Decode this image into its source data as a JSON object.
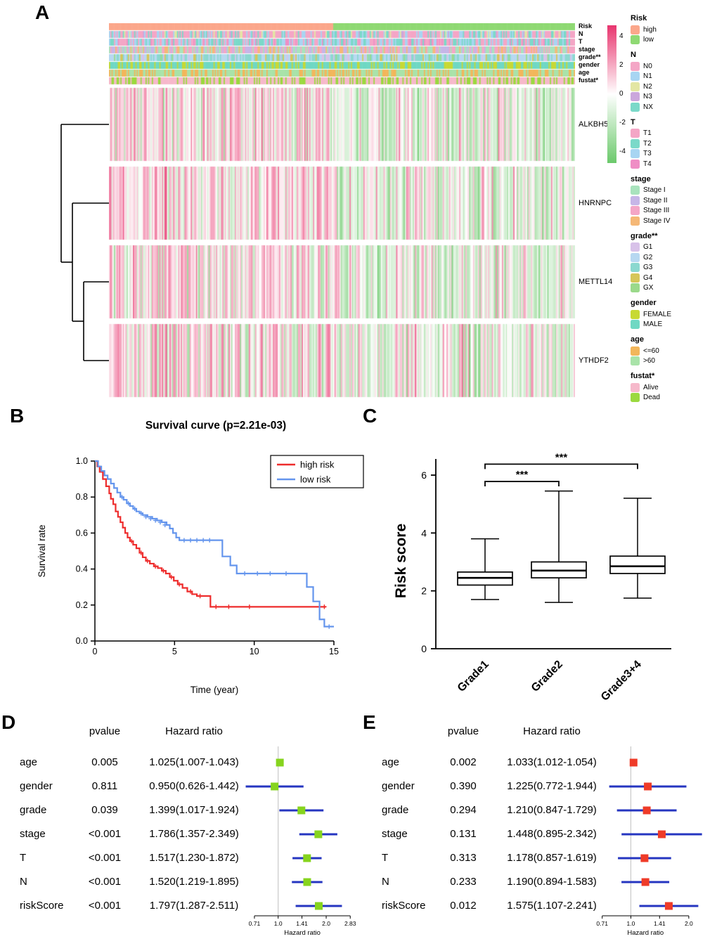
{
  "panels": {
    "A": "A",
    "B": "B",
    "C": "C",
    "D": "D",
    "E": "E"
  },
  "chart_data": [
    {
      "id": "expression-heatmap",
      "panel": "A",
      "type": "heatmap",
      "genes": [
        "ALKBH5",
        "HNRNPC",
        "METTL14",
        "YTHDF2"
      ],
      "n_samples": 370,
      "high_fraction": 0.48,
      "seed": 42,
      "gene_bias": [
        0.5,
        0.55,
        0.45,
        0.4
      ],
      "colormap": {
        "positive": "#E8356E",
        "zero": "#FFFFFF",
        "negative": "#6BC96B"
      },
      "colorbar": {
        "ticks": [
          4,
          2,
          0,
          -2,
          -4
        ],
        "vmax": 4.8,
        "vmin": -4.8
      },
      "tracks": [
        {
          "name": "Risk",
          "type": "group",
          "colors": {
            "high": "#FBA78B",
            "low": "#8FD973"
          }
        },
        {
          "name": "N",
          "type": "random",
          "categories": [
            "N0",
            "N1",
            "N2",
            "N3",
            "NX"
          ],
          "colors": [
            "#F4A6C6",
            "#A8D5F2",
            "#E3E6A4",
            "#CBA7DC",
            "#7BD9C9"
          ],
          "weights": [
            0.5,
            0.18,
            0.08,
            0.04,
            0.2
          ]
        },
        {
          "name": "T",
          "type": "random",
          "categories": [
            "T1",
            "T2",
            "T3",
            "T4"
          ],
          "colors": [
            "#F4A6C6",
            "#7BD9C9",
            "#A8D5F2",
            "#EF8EC5"
          ],
          "weights": [
            0.35,
            0.25,
            0.3,
            0.1
          ]
        },
        {
          "name": "stage",
          "type": "random",
          "categories": [
            "Stage I",
            "Stage II",
            "Stage III",
            "Stage IV"
          ],
          "colors": [
            "#A9E3BD",
            "#C6B6E7",
            "#F4A6C6",
            "#F5B877"
          ],
          "weights": [
            0.35,
            0.25,
            0.25,
            0.15
          ]
        },
        {
          "name": "grade**",
          "type": "random",
          "categories": [
            "G1",
            "G2",
            "G3",
            "G4",
            "GX"
          ],
          "colors": [
            "#D8C2E9",
            "#B7D8F1",
            "#8BD8CF",
            "#D6C659",
            "#9BD98B"
          ],
          "weights": [
            0.1,
            0.35,
            0.38,
            0.12,
            0.05
          ]
        },
        {
          "name": "gender",
          "type": "random",
          "categories": [
            "FEMALE",
            "MALE"
          ],
          "colors": [
            "#C7D934",
            "#6FD8C3"
          ],
          "weights": [
            0.34,
            0.66
          ]
        },
        {
          "name": "age",
          "type": "random",
          "categories": [
            "<=60",
            ">60"
          ],
          "colors": [
            "#F2B65B",
            "#A9E3A9"
          ],
          "weights": [
            0.45,
            0.55
          ]
        },
        {
          "name": "fustat*",
          "type": "random",
          "categories": [
            "Alive",
            "Dead"
          ],
          "colors": [
            "#F6B9CB",
            "#9BD93F"
          ],
          "weights": [
            0.62,
            0.38
          ]
        }
      ],
      "legends": [
        {
          "title": "Risk",
          "entries": [
            {
              "label": "high",
              "color": "#FBA78B"
            },
            {
              "label": "low",
              "color": "#8FD973"
            }
          ]
        },
        {
          "title": "N",
          "entries": [
            {
              "label": "N0",
              "color": "#F4A6C6"
            },
            {
              "label": "N1",
              "color": "#A8D5F2"
            },
            {
              "label": "N2",
              "color": "#E3E6A4"
            },
            {
              "label": "N3",
              "color": "#CBA7DC"
            },
            {
              "label": "NX",
              "color": "#7BD9C9"
            }
          ]
        },
        {
          "title": "T",
          "entries": [
            {
              "label": "T1",
              "color": "#F4A6C6"
            },
            {
              "label": "T2",
              "color": "#7BD9C9"
            },
            {
              "label": "T3",
              "color": "#A8D5F2"
            },
            {
              "label": "T4",
              "color": "#EF8EC5"
            }
          ]
        },
        {
          "title": "stage",
          "entries": [
            {
              "label": "Stage I",
              "color": "#A9E3BD"
            },
            {
              "label": "Stage II",
              "color": "#C6B6E7"
            },
            {
              "label": "Stage III",
              "color": "#F4A6C6"
            },
            {
              "label": "Stage IV",
              "color": "#F5B877"
            }
          ]
        },
        {
          "title": "grade**",
          "entries": [
            {
              "label": "G1",
              "color": "#D8C2E9"
            },
            {
              "label": "G2",
              "color": "#B7D8F1"
            },
            {
              "label": "G3",
              "color": "#8BD8CF"
            },
            {
              "label": "G4",
              "color": "#D6C659"
            },
            {
              "label": "GX",
              "color": "#9BD98B"
            }
          ]
        },
        {
          "title": "gender",
          "entries": [
            {
              "label": "FEMALE",
              "color": "#C7D934"
            },
            {
              "label": "MALE",
              "color": "#6FD8C3"
            }
          ]
        },
        {
          "title": "age",
          "entries": [
            {
              "label": "<=60",
              "color": "#F2B65B"
            },
            {
              "label": ">60",
              "color": "#A9E3A9"
            }
          ]
        },
        {
          "title": "fustat*",
          "entries": [
            {
              "label": "Alive",
              "color": "#F6B9CB"
            },
            {
              "label": "Dead",
              "color": "#9BD93F"
            }
          ]
        }
      ]
    },
    {
      "id": "survival-curve",
      "panel": "B",
      "type": "line",
      "title": "Survival curve (p=2.21e-03)",
      "xlabel": "Time (year)",
      "ylabel": "Survival rate",
      "xlim": [
        0,
        15
      ],
      "ylim": [
        0,
        1
      ],
      "xticks": [
        0,
        5,
        10,
        15
      ],
      "yticks": [
        0,
        0.2,
        0.4,
        0.6,
        0.8,
        1
      ],
      "legend_position": "top-right",
      "series": [
        {
          "name": "high risk",
          "color": "#EE2C2C",
          "steps": [
            [
              0,
              1
            ],
            [
              0.15,
              0.97
            ],
            [
              0.3,
              0.94
            ],
            [
              0.5,
              0.9
            ],
            [
              0.7,
              0.86
            ],
            [
              0.9,
              0.82
            ],
            [
              1,
              0.79
            ],
            [
              1.15,
              0.76
            ],
            [
              1.3,
              0.72
            ],
            [
              1.45,
              0.69
            ],
            [
              1.6,
              0.66
            ],
            [
              1.75,
              0.63
            ],
            [
              1.9,
              0.6
            ],
            [
              2.05,
              0.575
            ],
            [
              2.2,
              0.555
            ],
            [
              2.4,
              0.535
            ],
            [
              2.6,
              0.515
            ],
            [
              2.8,
              0.49
            ],
            [
              3,
              0.465
            ],
            [
              3.2,
              0.445
            ],
            [
              3.45,
              0.43
            ],
            [
              3.7,
              0.415
            ],
            [
              3.95,
              0.405
            ],
            [
              4.2,
              0.39
            ],
            [
              4.45,
              0.375
            ],
            [
              4.7,
              0.355
            ],
            [
              4.95,
              0.335
            ],
            [
              5.2,
              0.315
            ],
            [
              5.5,
              0.295
            ],
            [
              5.8,
              0.275
            ],
            [
              6.1,
              0.26
            ],
            [
              6.4,
              0.25
            ],
            [
              7,
              0.25
            ],
            [
              7.25,
              0.19
            ],
            [
              14.5,
              0.19
            ]
          ],
          "censors": [
            [
              2.3,
              0.555
            ],
            [
              2.9,
              0.49
            ],
            [
              3.3,
              0.445
            ],
            [
              3.8,
              0.415
            ],
            [
              4.3,
              0.39
            ],
            [
              4.8,
              0.355
            ],
            [
              5.3,
              0.315
            ],
            [
              6,
              0.275
            ],
            [
              6.6,
              0.25
            ],
            [
              7.6,
              0.19
            ],
            [
              8.4,
              0.19
            ],
            [
              9.7,
              0.19
            ],
            [
              14.4,
              0.19
            ]
          ]
        },
        {
          "name": "low risk",
          "color": "#6495ED",
          "steps": [
            [
              0,
              1
            ],
            [
              0.2,
              0.97
            ],
            [
              0.4,
              0.945
            ],
            [
              0.6,
              0.92
            ],
            [
              0.8,
              0.9
            ],
            [
              1,
              0.875
            ],
            [
              1.2,
              0.85
            ],
            [
              1.4,
              0.825
            ],
            [
              1.6,
              0.8
            ],
            [
              1.8,
              0.785
            ],
            [
              2,
              0.765
            ],
            [
              2.2,
              0.75
            ],
            [
              2.4,
              0.735
            ],
            [
              2.6,
              0.72
            ],
            [
              2.8,
              0.71
            ],
            [
              3,
              0.7
            ],
            [
              3.3,
              0.69
            ],
            [
              3.6,
              0.68
            ],
            [
              3.9,
              0.67
            ],
            [
              4.2,
              0.66
            ],
            [
              4.5,
              0.645
            ],
            [
              4.7,
              0.625
            ],
            [
              4.9,
              0.6
            ],
            [
              5.1,
              0.575
            ],
            [
              5.3,
              0.56
            ],
            [
              7.6,
              0.56
            ],
            [
              8,
              0.47
            ],
            [
              8.5,
              0.42
            ],
            [
              8.9,
              0.375
            ],
            [
              12.9,
              0.375
            ],
            [
              13.3,
              0.3
            ],
            [
              13.7,
              0.22
            ],
            [
              14.1,
              0.12
            ],
            [
              14.4,
              0.08
            ],
            [
              15,
              0.08
            ]
          ],
          "censors": [
            [
              1.7,
              0.8
            ],
            [
              2.1,
              0.765
            ],
            [
              2.5,
              0.735
            ],
            [
              2.9,
              0.71
            ],
            [
              3.2,
              0.69
            ],
            [
              3.5,
              0.68
            ],
            [
              3.8,
              0.67
            ],
            [
              4.1,
              0.66
            ],
            [
              4.4,
              0.645
            ],
            [
              5.6,
              0.56
            ],
            [
              6,
              0.56
            ],
            [
              6.4,
              0.56
            ],
            [
              6.8,
              0.56
            ],
            [
              7.2,
              0.56
            ],
            [
              9.4,
              0.375
            ],
            [
              10.2,
              0.375
            ],
            [
              11,
              0.375
            ],
            [
              12,
              0.375
            ],
            [
              14.7,
              0.08
            ]
          ]
        }
      ]
    },
    {
      "id": "risk-score-boxplot",
      "panel": "C",
      "type": "box",
      "ylabel": "Risk score",
      "ylim": [
        0,
        6
      ],
      "yticks": [
        0,
        2,
        4,
        6
      ],
      "categories": [
        "Grade1",
        "Grade2",
        "Grade3+4"
      ],
      "boxes": [
        {
          "label": "Grade1",
          "min": 1.7,
          "q1": 2.2,
          "median": 2.45,
          "q3": 2.65,
          "max": 3.8
        },
        {
          "label": "Grade2",
          "min": 1.6,
          "q1": 2.45,
          "median": 2.7,
          "q3": 3.0,
          "max": 5.45
        },
        {
          "label": "Grade3+4",
          "min": 1.75,
          "q1": 2.6,
          "median": 2.85,
          "q3": 3.2,
          "max": 5.2
        }
      ],
      "significance": [
        {
          "from": 0,
          "to": 1,
          "label": "***",
          "y": 5.78
        },
        {
          "from": 0,
          "to": 2,
          "label": "***",
          "y": 6.38
        }
      ]
    },
    {
      "id": "forest-univariate",
      "panel": "D",
      "type": "forest",
      "col_pvalue": "pvalue",
      "col_hr": "Hazard ratio",
      "xlabel": "Hazard ratio",
      "marker_color": "#86D41E",
      "ci_color": "#2535C0",
      "xticks": [
        "0.71",
        "1.0",
        "1.41",
        "2.0",
        "2.83"
      ],
      "xdomain": [
        0.58,
        3.0
      ],
      "rows": [
        {
          "name": "age",
          "pvalue": "0.005",
          "hr_text": "1.025(1.007-1.043)",
          "hr": 1.025,
          "low": 1.007,
          "high": 1.043
        },
        {
          "name": "gender",
          "pvalue": "0.811",
          "hr_text": "0.950(0.626-1.442)",
          "hr": 0.95,
          "low": 0.626,
          "high": 1.442
        },
        {
          "name": "grade",
          "pvalue": "0.039",
          "hr_text": "1.399(1.017-1.924)",
          "hr": 1.399,
          "low": 1.017,
          "high": 1.924
        },
        {
          "name": "stage",
          "pvalue": "<0.001",
          "hr_text": "1.786(1.357-2.349)",
          "hr": 1.786,
          "low": 1.357,
          "high": 2.349
        },
        {
          "name": "T",
          "pvalue": "<0.001",
          "hr_text": "1.517(1.230-1.872)",
          "hr": 1.517,
          "low": 1.23,
          "high": 1.872
        },
        {
          "name": "N",
          "pvalue": "<0.001",
          "hr_text": "1.520(1.219-1.895)",
          "hr": 1.52,
          "low": 1.219,
          "high": 1.895
        },
        {
          "name": "riskScore",
          "pvalue": "<0.001",
          "hr_text": "1.797(1.287-2.511)",
          "hr": 1.797,
          "low": 1.287,
          "high": 2.511
        }
      ]
    },
    {
      "id": "forest-multivariate",
      "panel": "E",
      "type": "forest",
      "col_pvalue": "pvalue",
      "col_hr": "Hazard ratio",
      "xlabel": "Hazard ratio",
      "marker_color": "#EF3B28",
      "ci_color": "#2535C0",
      "xticks": [
        "0.71",
        "1.0",
        "1.41",
        "2.0"
      ],
      "xdomain": [
        0.66,
        2.45
      ],
      "rows": [
        {
          "name": "age",
          "pvalue": "0.002",
          "hr_text": "1.033(1.012-1.054)",
          "hr": 1.033,
          "low": 1.012,
          "high": 1.054
        },
        {
          "name": "gender",
          "pvalue": "0.390",
          "hr_text": "1.225(0.772-1.944)",
          "hr": 1.225,
          "low": 0.772,
          "high": 1.944
        },
        {
          "name": "grade",
          "pvalue": "0.294",
          "hr_text": "1.210(0.847-1.729)",
          "hr": 1.21,
          "low": 0.847,
          "high": 1.729
        },
        {
          "name": "stage",
          "pvalue": "0.131",
          "hr_text": "1.448(0.895-2.342)",
          "hr": 1.448,
          "low": 0.895,
          "high": 2.342
        },
        {
          "name": "T",
          "pvalue": "0.313",
          "hr_text": "1.178(0.857-1.619)",
          "hr": 1.178,
          "low": 0.857,
          "high": 1.619
        },
        {
          "name": "N",
          "pvalue": "0.233",
          "hr_text": "1.190(0.894-1.583)",
          "hr": 1.19,
          "low": 0.894,
          "high": 1.583
        },
        {
          "name": "riskScore",
          "pvalue": "0.012",
          "hr_text": "1.575(1.107-2.241)",
          "hr": 1.575,
          "low": 1.107,
          "high": 2.241
        }
      ]
    }
  ]
}
